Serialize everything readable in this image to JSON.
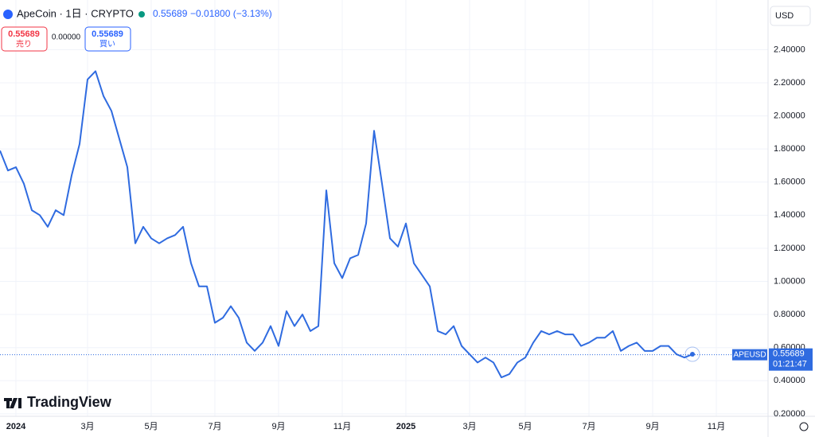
{
  "header": {
    "symbol": "ApeCoin · 1日 · CRYPTO",
    "last_price": 0.55689,
    "change": "−0.01800 (−3.13%)",
    "sell_label": "売り",
    "buy_label": "買い",
    "spread": "0.00000",
    "currency": "USD",
    "countdown": "01:21:47",
    "logo": "TradingView"
  },
  "chart_data": {
    "type": "line",
    "categories": [
      null,
      null,
      "2024",
      null,
      null,
      null,
      null,
      null,
      null,
      null,
      null,
      "3月",
      null,
      null,
      null,
      null,
      null,
      null,
      null,
      "5月",
      null,
      null,
      null,
      null,
      null,
      null,
      null,
      "7月",
      null,
      null,
      null,
      null,
      null,
      null,
      null,
      "9月",
      null,
      null,
      null,
      null,
      null,
      null,
      null,
      "11月",
      null,
      null,
      null,
      null,
      null,
      null,
      null,
      "2025",
      null,
      null,
      null,
      null,
      null,
      null,
      null,
      "3月",
      null,
      null,
      null,
      null,
      null,
      null,
      "5月",
      null,
      null,
      null,
      null,
      null,
      null,
      null,
      "7月",
      null,
      null,
      null,
      null,
      null,
      null,
      null,
      "9月",
      null,
      null,
      null,
      null,
      null,
      null,
      null,
      "11月"
    ],
    "series": [
      {
        "name": "APEUSD",
        "color": "#2f6be0",
        "values": [
          1.79,
          1.67,
          1.69,
          1.59,
          1.43,
          1.4,
          1.33,
          1.43,
          1.4,
          1.64,
          1.83,
          2.22,
          2.27,
          2.12,
          2.03,
          1.86,
          1.69,
          1.23,
          1.33,
          1.26,
          1.23,
          1.26,
          1.28,
          1.33,
          1.11,
          0.97,
          0.97,
          0.75,
          0.78,
          0.85,
          0.78,
          0.63,
          0.58,
          0.63,
          0.73,
          0.61,
          0.82,
          0.73,
          0.8,
          0.7,
          0.73,
          1.55,
          1.11,
          1.02,
          1.14,
          1.16,
          1.35,
          1.91,
          1.59,
          1.26,
          1.21,
          1.35,
          1.11,
          1.04,
          0.97,
          0.7,
          0.68,
          0.73,
          0.61,
          0.56,
          0.51,
          0.54,
          0.51,
          0.42,
          0.44,
          0.51,
          0.54,
          0.63,
          0.7,
          0.68,
          0.7,
          0.68,
          0.68,
          0.61,
          0.63,
          0.66,
          0.66,
          0.7,
          0.58,
          0.61,
          0.63,
          0.58,
          0.58,
          0.61,
          0.61,
          0.56,
          0.54,
          0.56,
          null,
          null,
          null
        ]
      }
    ],
    "ylim": [
      0.185,
      2.7
    ],
    "yticks": [
      {
        "value": 0.2,
        "label": "0.20000"
      },
      {
        "value": 0.4,
        "label": "0.40000"
      },
      {
        "value": 0.6,
        "label": "0.60000"
      },
      {
        "value": 0.8,
        "label": "0.80000"
      },
      {
        "value": 1.0,
        "label": "1.00000"
      },
      {
        "value": 1.2,
        "label": "1.20000"
      },
      {
        "value": 1.4,
        "label": "1.40000"
      },
      {
        "value": 1.6,
        "label": "1.60000"
      },
      {
        "value": 1.8,
        "label": "1.80000"
      },
      {
        "value": 2.0,
        "label": "2.00000"
      },
      {
        "value": 2.2,
        "label": "2.20000"
      },
      {
        "value": 2.4,
        "label": "2.40000"
      }
    ],
    "grid": true
  }
}
